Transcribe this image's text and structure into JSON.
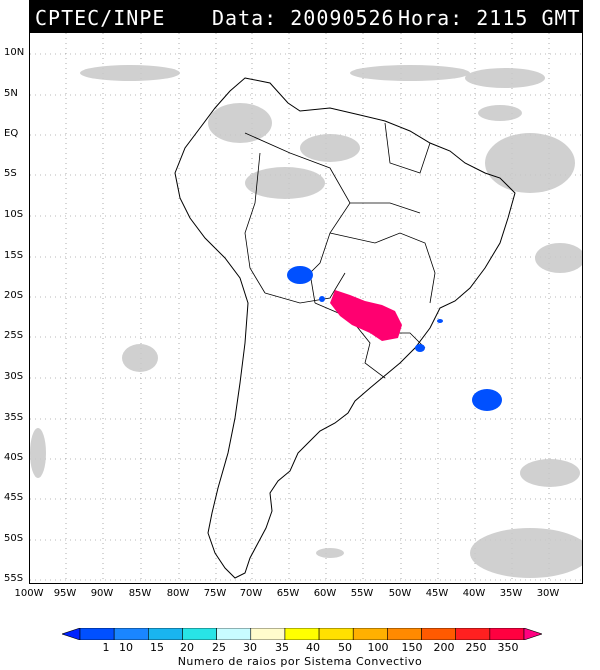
{
  "header": {
    "source": "CPTEC/INPE",
    "date_label": "Data: 20090526",
    "time_label": "Hora: 2115 GMT"
  },
  "axes": {
    "lat_labels": [
      "10N",
      "5N",
      "EQ",
      "5S",
      "10S",
      "15S",
      "20S",
      "25S",
      "30S",
      "35S",
      "40S",
      "45S",
      "50S",
      "55S"
    ],
    "lon_labels": [
      "100W",
      "95W",
      "90W",
      "85W",
      "80W",
      "75W",
      "70W",
      "65W",
      "60W",
      "55W",
      "50W",
      "45W",
      "40W",
      "35W",
      "30W"
    ]
  },
  "colorbar": {
    "levels": [
      "1",
      "10",
      "15",
      "20",
      "25",
      "30",
      "35",
      "40",
      "50",
      "100",
      "150",
      "200",
      "250",
      "350"
    ],
    "colors": [
      "#0022ff",
      "#0050ff",
      "#1a86ff",
      "#19b5f0",
      "#28e4e6",
      "#c8fcff",
      "#fffccc",
      "#ffff00",
      "#ffe000",
      "#ffb000",
      "#ff8a00",
      "#ff5a00",
      "#ff2020",
      "#ff0040",
      "#ff0080"
    ],
    "title": "Numero de raios por Sistema Convectivo"
  },
  "map_style": {
    "land_outline": "#000000",
    "cloud_gray": "#c8c8c8",
    "storm_blue": "#0050ff",
    "storm_magenta": "#ff0070"
  }
}
